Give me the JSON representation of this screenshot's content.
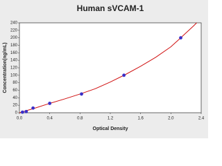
{
  "chart_data": {
    "type": "scatter",
    "title": "Human sVCAM-1",
    "x_label": "Optical Density",
    "y_label": "Concentration(ng/mL)",
    "xlim": [
      0,
      2.4
    ],
    "ylim": [
      0,
      240
    ],
    "xticks": [
      {
        "value": 0,
        "label": "0.0"
      },
      0.4,
      0.8,
      1.2,
      1.6,
      {
        "value": 2,
        "label": "2.0"
      },
      2.4
    ],
    "yticks": [
      0,
      20,
      40,
      60,
      80,
      100,
      120,
      140,
      160,
      180,
      200,
      220,
      240
    ],
    "series": [
      {
        "type": "line",
        "color": "#d01010",
        "x": [
          0,
          0.2,
          0.4,
          0.6,
          0.8,
          1.0,
          1.2,
          1.4,
          1.6,
          1.8,
          2.0,
          2.13,
          2.3,
          2.34
        ],
        "values": [
          0,
          12,
          25,
          37,
          50,
          64,
          82,
          102,
          124,
          148,
          176,
          200,
          232,
          240
        ]
      },
      {
        "type": "scatter",
        "color": "#3a2fc8",
        "x": [
          0.04,
          0.09,
          0.18,
          0.4,
          0.82,
          1.38,
          2.13
        ],
        "values": [
          1.6,
          3.1,
          12.5,
          25,
          50,
          100,
          200
        ]
      }
    ]
  }
}
